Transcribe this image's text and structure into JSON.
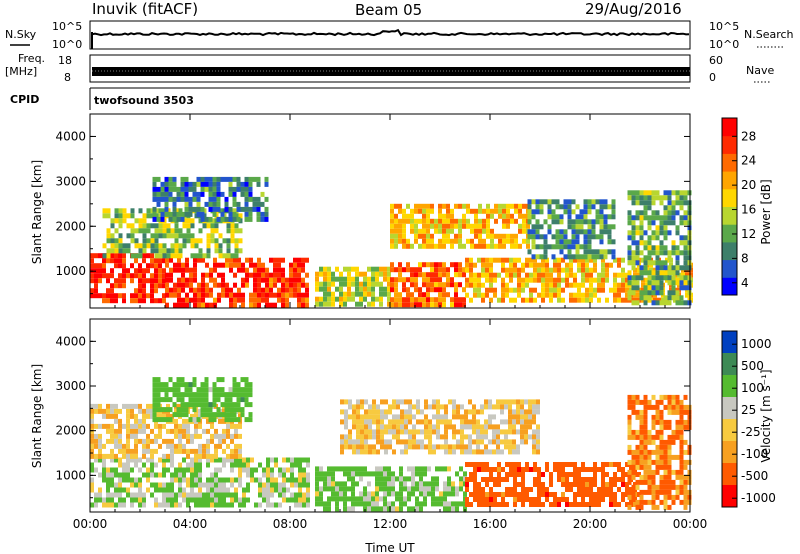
{
  "header": {
    "station": "Inuvik (fitACF)",
    "beam": "Beam 05",
    "date": "29/Aug/2016"
  },
  "strips": {
    "nsky_label": "N.Sky",
    "nsky_ticks": [
      "10^5",
      "10^0"
    ],
    "nsearch_label": "N.Search",
    "nsearch_ticks": [
      "10^5",
      "10^0"
    ],
    "freq_label_1": "Freq.",
    "freq_label_2": "[MHz]",
    "freq_ticks": [
      "18",
      "8"
    ],
    "nave_label": "Nave",
    "nave_ticks": [
      "60",
      "0"
    ],
    "cpid_label": "CPID",
    "cpid_value": "twofsound 3503"
  },
  "chart_data": [
    {
      "type": "heatmap",
      "title": "",
      "quantity": "Power",
      "xlabel": "",
      "ylabel": "Slant Range [km]",
      "x_ticks": [
        "00:00",
        "04:00",
        "08:00",
        "12:00",
        "16:00",
        "20:00",
        "00:00"
      ],
      "xlim_hours": [
        0,
        24
      ],
      "y_ticks": [
        "1000",
        "2000",
        "3000",
        "4000"
      ],
      "ylim_km": [
        180,
        4500
      ],
      "colorbar": {
        "label": "Power [dB]",
        "ticks": [
          "4",
          "8",
          "12",
          "16",
          "20",
          "24",
          "28"
        ],
        "colors": [
          "#0000ff",
          "#2255cc",
          "#3d7f6a",
          "#5aa84a",
          "#b8d630",
          "#ffd700",
          "#ffa500",
          "#ff6a00",
          "#ff2a00",
          "#ff0000"
        ]
      },
      "echo_regions": [
        {
          "t_start": 0.0,
          "t_end": 3.0,
          "r_min": 300,
          "r_max": 1400,
          "level": 28
        },
        {
          "t_start": 3.0,
          "t_end": 8.7,
          "r_min": 200,
          "r_max": 1300,
          "level": 27
        },
        {
          "t_start": 0.5,
          "t_end": 6.0,
          "r_min": 1300,
          "r_max": 2400,
          "level": 14
        },
        {
          "t_start": 2.5,
          "t_end": 7.0,
          "r_min": 2200,
          "r_max": 3100,
          "level": 9
        },
        {
          "t_start": 9.0,
          "t_end": 12.0,
          "r_min": 300,
          "r_max": 1100,
          "level": 16
        },
        {
          "t_start": 12.0,
          "t_end": 15.0,
          "r_min": 300,
          "r_max": 1200,
          "level": 24
        },
        {
          "t_start": 12.0,
          "t_end": 17.5,
          "r_min": 1500,
          "r_max": 2500,
          "level": 20
        },
        {
          "t_start": 15.0,
          "t_end": 24.0,
          "r_min": 300,
          "r_max": 1300,
          "level": 20
        },
        {
          "t_start": 17.5,
          "t_end": 21.0,
          "r_min": 1300,
          "r_max": 2600,
          "level": 10
        },
        {
          "t_start": 21.5,
          "t_end": 24.0,
          "r_min": 300,
          "r_max": 2800,
          "level": 12
        }
      ]
    },
    {
      "type": "heatmap",
      "title": "",
      "quantity": "Velocity",
      "xlabel": "Time UT",
      "ylabel": "Slant Range [km]",
      "x_ticks": [
        "00:00",
        "04:00",
        "08:00",
        "12:00",
        "16:00",
        "20:00",
        "00:00"
      ],
      "xlim_hours": [
        0,
        24
      ],
      "y_ticks": [
        "1000",
        "2000",
        "3000",
        "4000"
      ],
      "ylim_km": [
        180,
        4500
      ],
      "colorbar": {
        "label": "Velocity [m s⁻¹]",
        "ticks": [
          "1000",
          "500",
          "100",
          "25",
          "-25",
          "-100",
          "-500",
          "-1000"
        ],
        "colors": [
          "#0040c0",
          "#3d8a55",
          "#55bb30",
          "#c8c8c0",
          "#f7ca40",
          "#f7a020",
          "#ff5a00",
          "#ff0000"
        ]
      },
      "echo_regions": [
        {
          "t_start": 0.0,
          "t_end": 8.7,
          "r_min": 300,
          "r_max": 1400,
          "level": 100
        },
        {
          "t_start": 0.0,
          "t_end": 6.0,
          "r_min": 1400,
          "r_max": 2600,
          "level": 0
        },
        {
          "t_start": 2.5,
          "t_end": 6.5,
          "r_min": 2200,
          "r_max": 3200,
          "level": 300
        },
        {
          "t_start": 9.0,
          "t_end": 15.0,
          "r_min": 300,
          "r_max": 1200,
          "level": 150
        },
        {
          "t_start": 10.0,
          "t_end": 18.0,
          "r_min": 1500,
          "r_max": 2700,
          "level": 0
        },
        {
          "t_start": 15.0,
          "t_end": 22.0,
          "r_min": 300,
          "r_max": 1300,
          "level": -300
        },
        {
          "t_start": 21.5,
          "t_end": 24.0,
          "r_min": 300,
          "r_max": 2800,
          "level": -100
        }
      ]
    }
  ]
}
